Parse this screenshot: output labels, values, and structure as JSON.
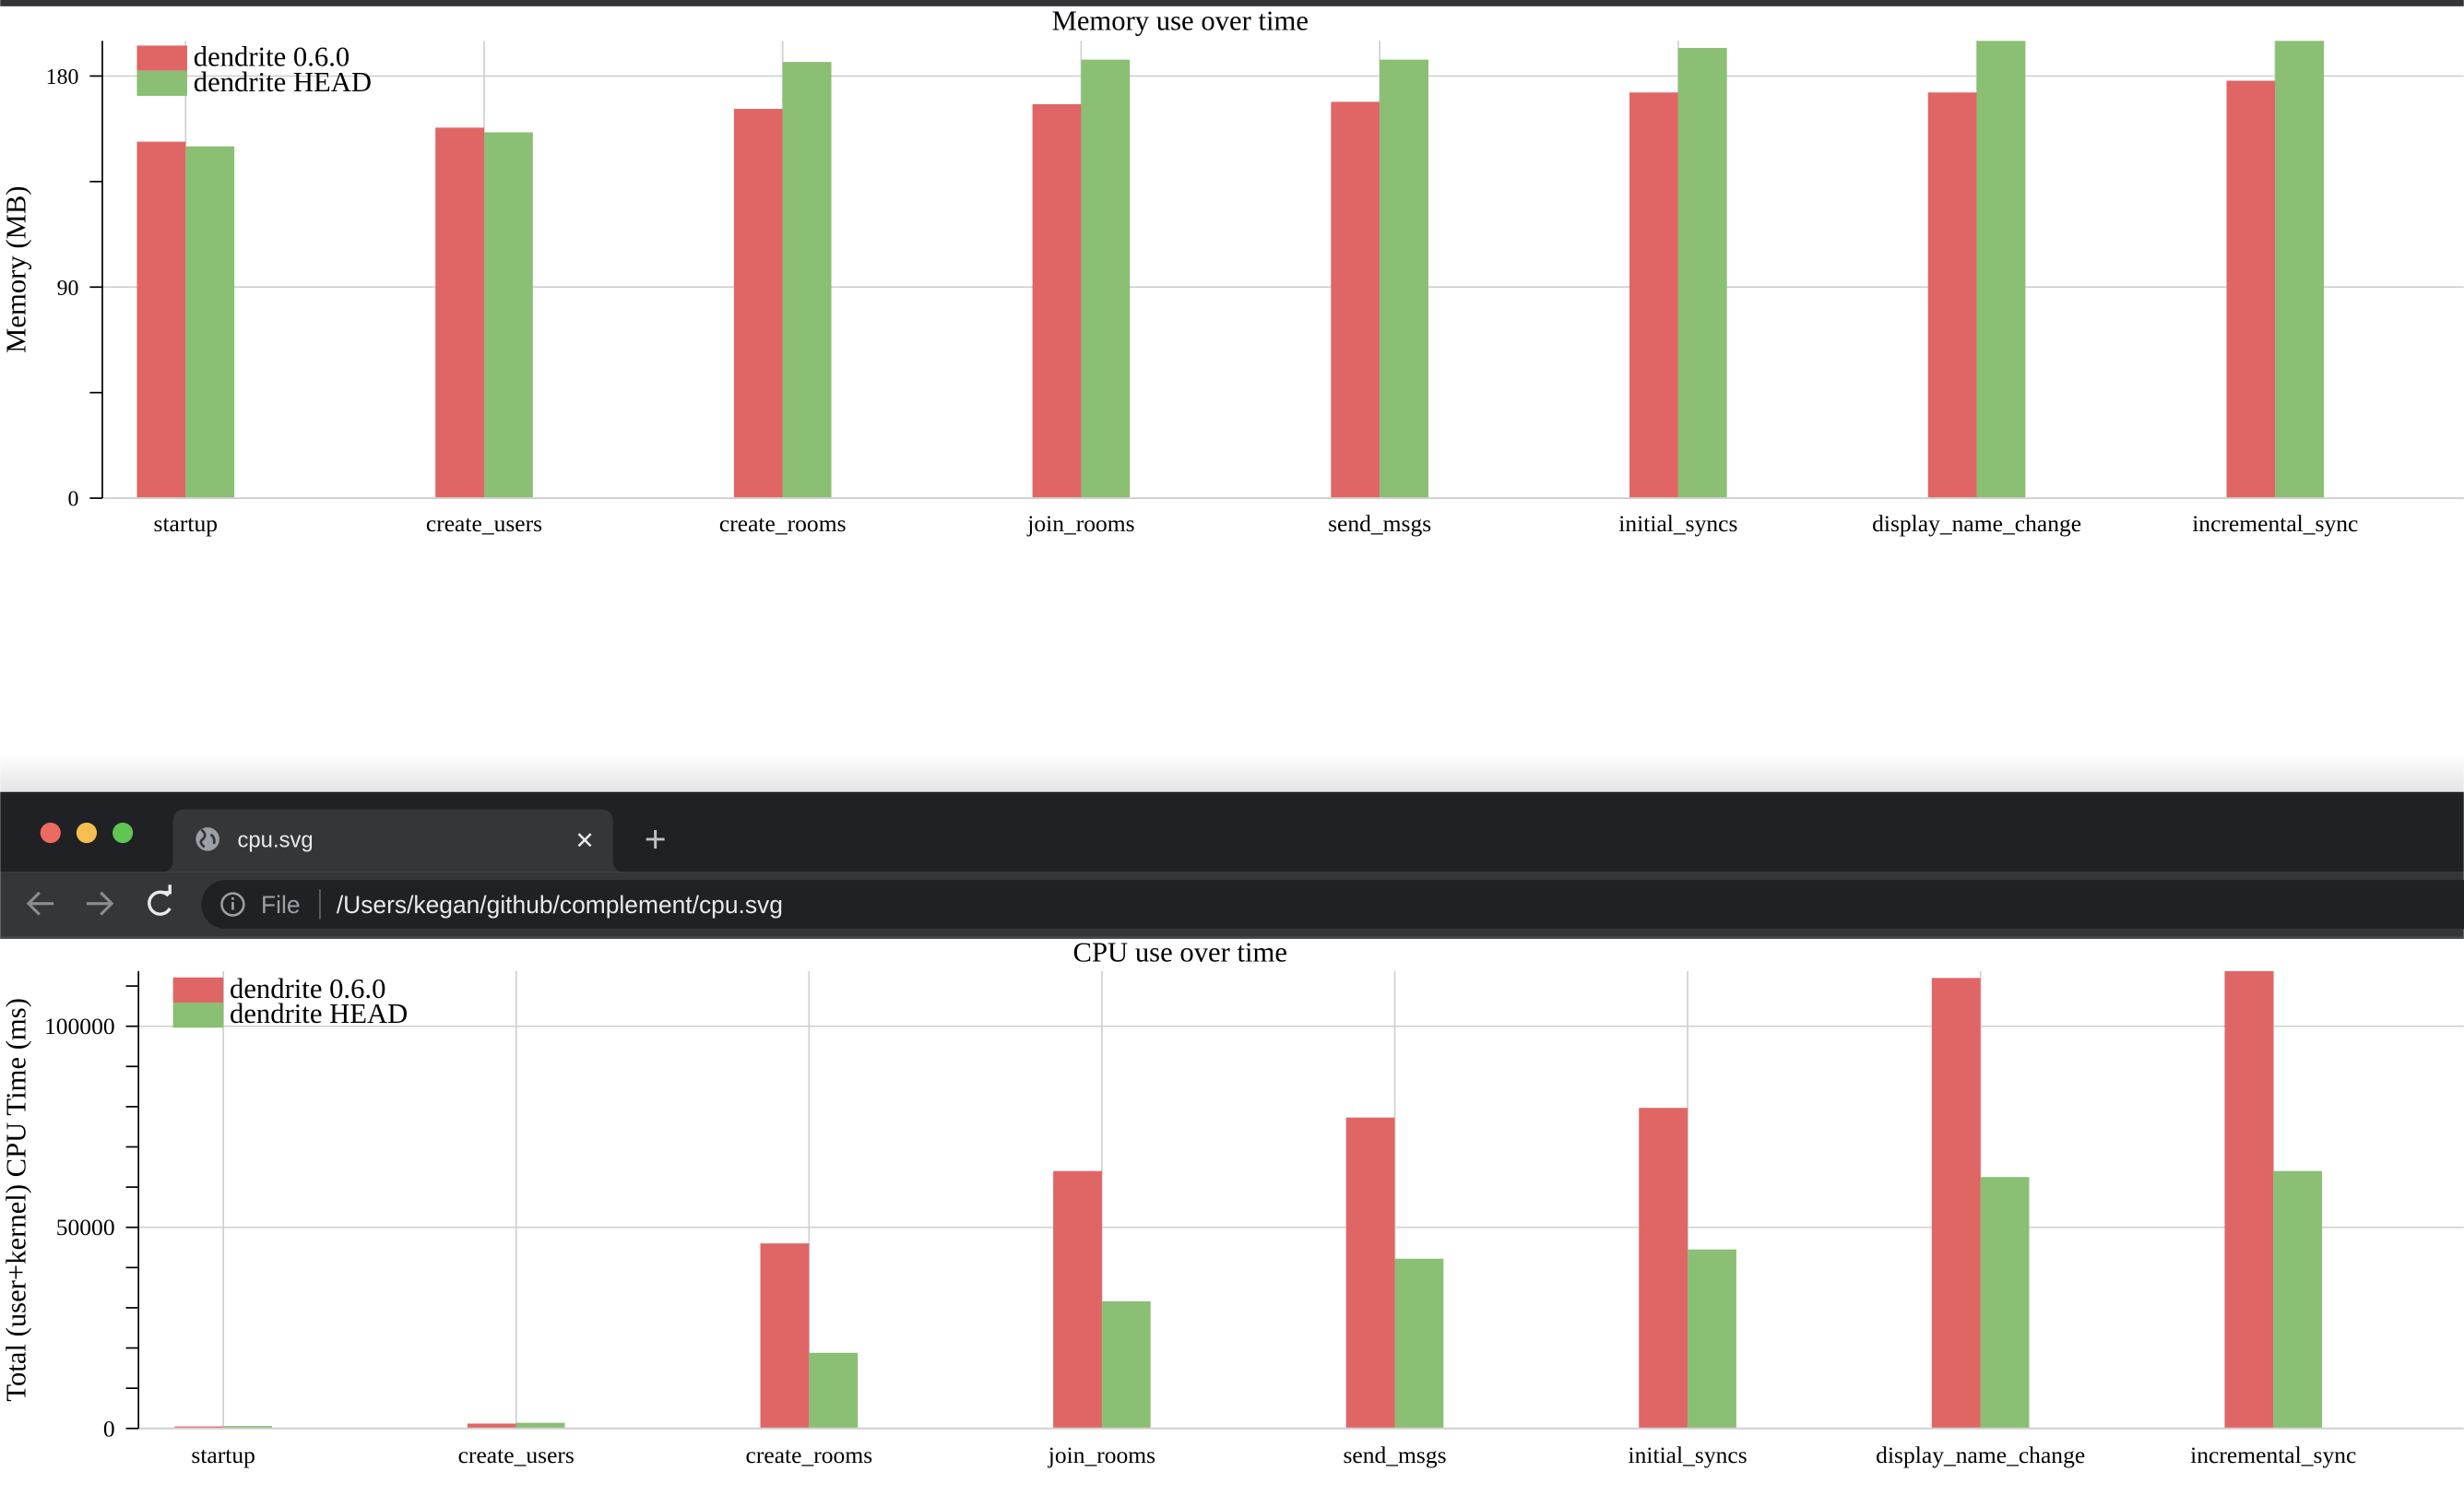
{
  "browser": {
    "tab_title": "cpu.svg",
    "tab_close": "✕",
    "new_tab": "+",
    "address_scheme_label": "File",
    "address_url": "/Users/kegan/github/complement/cpu.svg",
    "icons": [
      "back-arrow-icon",
      "forward-arrow-icon",
      "reload-icon",
      "info-icon",
      "globe-icon",
      "close-icon",
      "plus-icon"
    ],
    "traffic_lights": [
      "#ed6a5e",
      "#f5bf4f",
      "#61c554"
    ]
  },
  "colors": {
    "series_a": "#e06666",
    "series_b": "#8bbf73"
  },
  "chart_data": [
    {
      "type": "bar",
      "title": "Memory use over time",
      "ylabel": "Memory (MB)",
      "xlabel": "",
      "categories": [
        "startup",
        "create_users",
        "create_rooms",
        "join_rooms",
        "send_msgs",
        "initial_syncs",
        "display_name_change",
        "incremental_sync"
      ],
      "series": [
        {
          "name": "dendrite 0.6.0",
          "values": [
            152,
            158,
            166,
            168,
            169,
            173,
            173,
            178
          ]
        },
        {
          "name": "dendrite HEAD",
          "values": [
            150,
            156,
            186,
            187,
            187,
            192,
            196,
            196
          ]
        }
      ],
      "ylim": [
        0,
        195
      ],
      "yticks": [
        0,
        45,
        90,
        135,
        180
      ],
      "ytick_labels": [
        "0",
        "",
        "90",
        "",
        "180"
      ],
      "grid": true,
      "legend": "top-left"
    },
    {
      "type": "bar",
      "title": "CPU use over time",
      "ylabel": "Total (user+kernel) CPU Time (ms)",
      "xlabel": "",
      "categories": [
        "startup",
        "create_users",
        "create_rooms",
        "join_rooms",
        "send_msgs",
        "initial_syncs",
        "display_name_change",
        "incremental_sync"
      ],
      "series": [
        {
          "name": "dendrite 0.6.0",
          "values": [
            500,
            1200,
            46000,
            64000,
            77300,
            79700,
            112000,
            113700
          ]
        },
        {
          "name": "dendrite HEAD",
          "values": [
            600,
            1400,
            18800,
            31600,
            42200,
            44500,
            62500,
            64000
          ]
        }
      ],
      "ylim": [
        0,
        113700
      ],
      "yticks": [
        0,
        10000,
        20000,
        30000,
        40000,
        50000,
        60000,
        70000,
        80000,
        90000,
        100000,
        110000
      ],
      "ytick_labels": [
        "0",
        "",
        "",
        "",
        "",
        "50000",
        "",
        "",
        "",
        "",
        "100000",
        ""
      ],
      "grid": true,
      "legend": "top-left"
    }
  ]
}
